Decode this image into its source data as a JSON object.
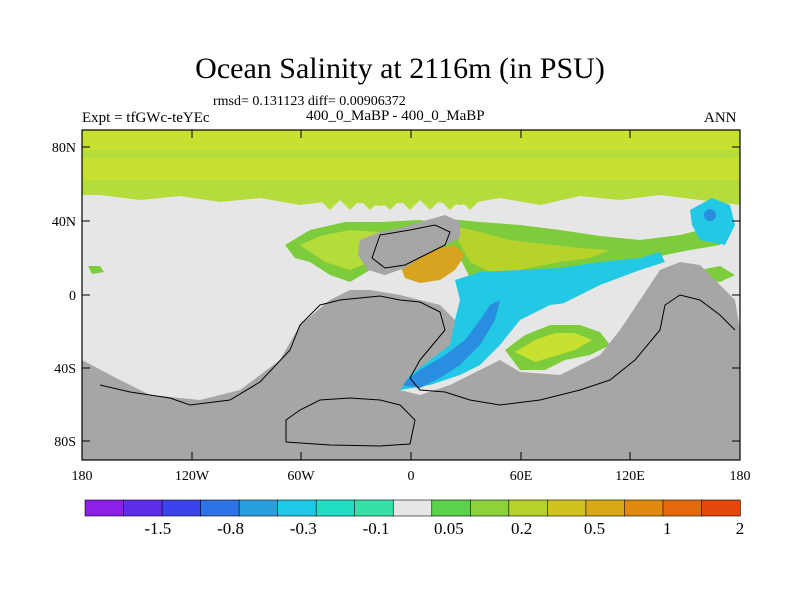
{
  "title": "Ocean Salinity at 2116m (in PSU)",
  "stats": "rmsd= 0.131123 diff= 0.00906372",
  "left_label": "Expt = tfGWc-teYEc",
  "center_label": "400_0_MaBP - 400_0_MaBP",
  "right_label": "ANN",
  "lat_ticks": [
    "80N",
    "40N",
    "0",
    "40S",
    "80S"
  ],
  "lon_ticks": [
    "180",
    "120W",
    "60W",
    "0",
    "60E",
    "120E",
    "180"
  ],
  "colorbar": {
    "colors": [
      "#8e1fe6",
      "#5c2ee8",
      "#3b44ea",
      "#2d72e6",
      "#2a9fe0",
      "#1ec8e6",
      "#22dcc4",
      "#36e0a8",
      "#e6e6e6",
      "#5ad24a",
      "#8cd23a",
      "#b8d22c",
      "#d2c21e",
      "#d8a818",
      "#e08a10",
      "#e46a0c",
      "#e4480a"
    ],
    "labels": [
      {
        "text": "-1.5",
        "boundary": 2
      },
      {
        "text": "-0.8",
        "boundary": 4
      },
      {
        "text": "-0.3",
        "boundary": 6
      },
      {
        "text": "-0.1",
        "boundary": 8
      },
      {
        "text": "0.05",
        "boundary": 10
      },
      {
        "text": "0.2",
        "boundary": 12
      },
      {
        "text": "0.5",
        "boundary": 14
      },
      {
        "text": "1",
        "boundary": 16
      },
      {
        "text": "2",
        "boundary": 18
      }
    ]
  },
  "colors": {
    "land": "#a6a6a6",
    "ocean_neutral": "#e6e6e6",
    "yellow_green": "#c8e030",
    "light_green": "#b4dc3a",
    "green": "#7ccc3c",
    "orange": "#d8a420",
    "cyan": "#22c8e4",
    "light_blue": "#2aa8e0",
    "blue": "#2a8ee0"
  }
}
